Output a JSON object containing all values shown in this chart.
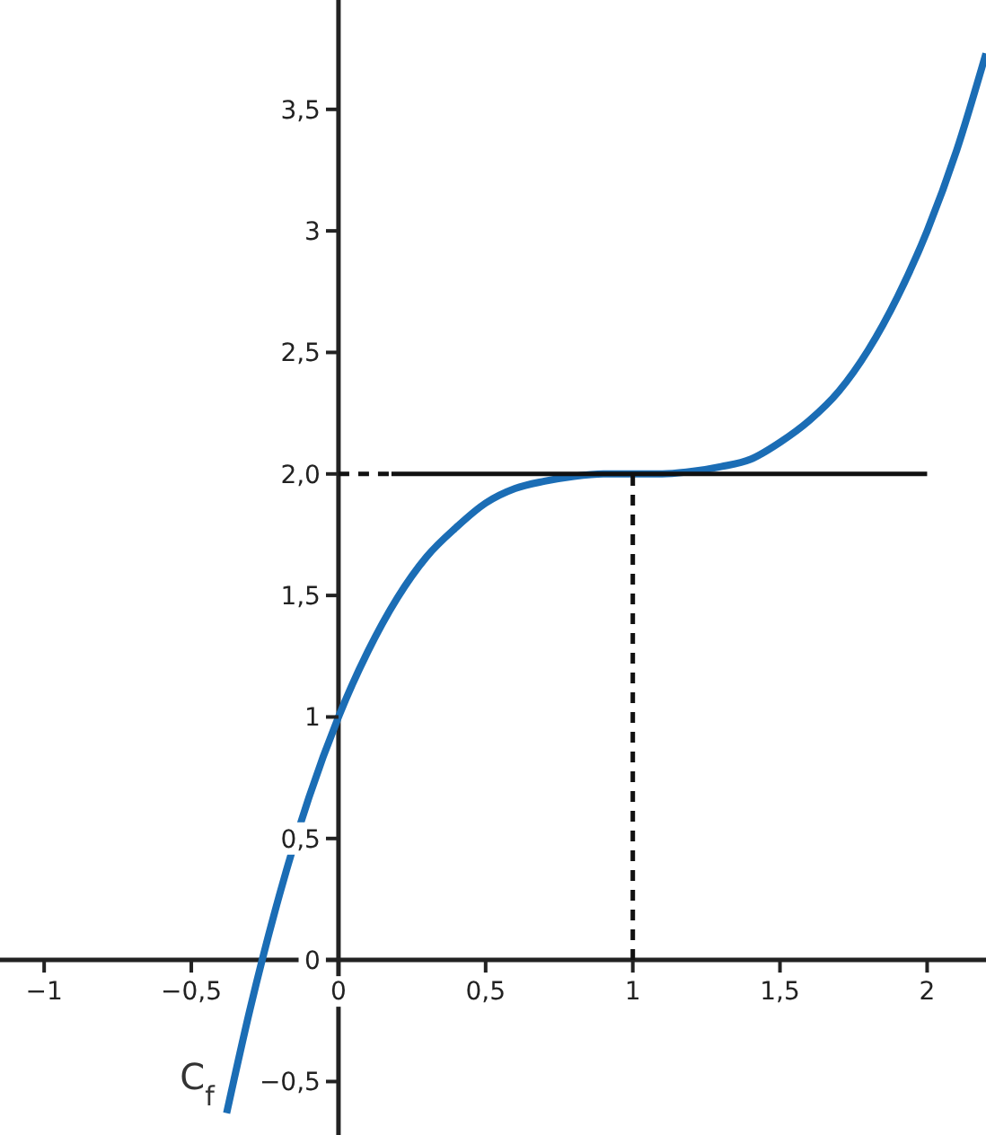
{
  "chart_data": {
    "type": "line",
    "xlim": [
      -1.15,
      2.2
    ],
    "ylim": [
      -0.72,
      3.95
    ],
    "xticks": [
      {
        "value": -1,
        "label": "−1"
      },
      {
        "value": -0.5,
        "label": "−0,5"
      },
      {
        "value": 0,
        "label": "0"
      },
      {
        "value": 0.5,
        "label": "0,5"
      },
      1,
      {
        "value": 1.5,
        "label": "1,5"
      },
      2
    ],
    "yticks": [
      {
        "value": -0.5,
        "label": "−0,5"
      },
      {
        "value": 0,
        "label": "0"
      },
      {
        "value": 0.5,
        "label": "0,5"
      },
      1,
      {
        "value": 1.5,
        "label": "1,5"
      },
      {
        "value": 2,
        "label": "2,0"
      },
      {
        "value": 2.5,
        "label": "2,5"
      },
      3,
      {
        "value": 3.5,
        "label": "3,5"
      }
    ],
    "grid": false,
    "marker": "none",
    "series": [
      {
        "color": "#1b6db5",
        "line_style": "solid",
        "x": [
          -0.38,
          -0.3,
          -0.2,
          -0.1,
          0,
          0.1,
          0.2,
          0.3,
          0.4,
          0.5,
          0.6,
          0.7,
          0.8,
          0.9,
          1,
          1.1,
          1.2,
          1.3,
          1.4,
          1.5,
          1.6,
          1.7,
          1.8,
          1.9,
          2,
          2.1,
          2.2
        ],
        "values": [
          -0.63,
          -0.2,
          0.27,
          0.67,
          1,
          1.27,
          1.49,
          1.66,
          1.78,
          1.88,
          1.94,
          1.97,
          1.99,
          2,
          2,
          2,
          2.01,
          2.03,
          2.06,
          2.13,
          2.22,
          2.34,
          2.51,
          2.73,
          3,
          3.33,
          3.73
        ]
      },
      {
        "color": "#111111",
        "line_style": "solid",
        "x": [
          0.18,
          2
        ],
        "values": [
          2,
          2
        ]
      },
      {
        "color": "#111111",
        "line_style": "dashed",
        "x": [
          0,
          0.18
        ],
        "values": [
          2,
          2
        ]
      },
      {
        "color": "#111111",
        "line_style": "dashed",
        "x": [
          1,
          1
        ],
        "values": [
          0,
          2
        ]
      }
    ],
    "annotations": [
      "C$_{f}$"
    ]
  }
}
